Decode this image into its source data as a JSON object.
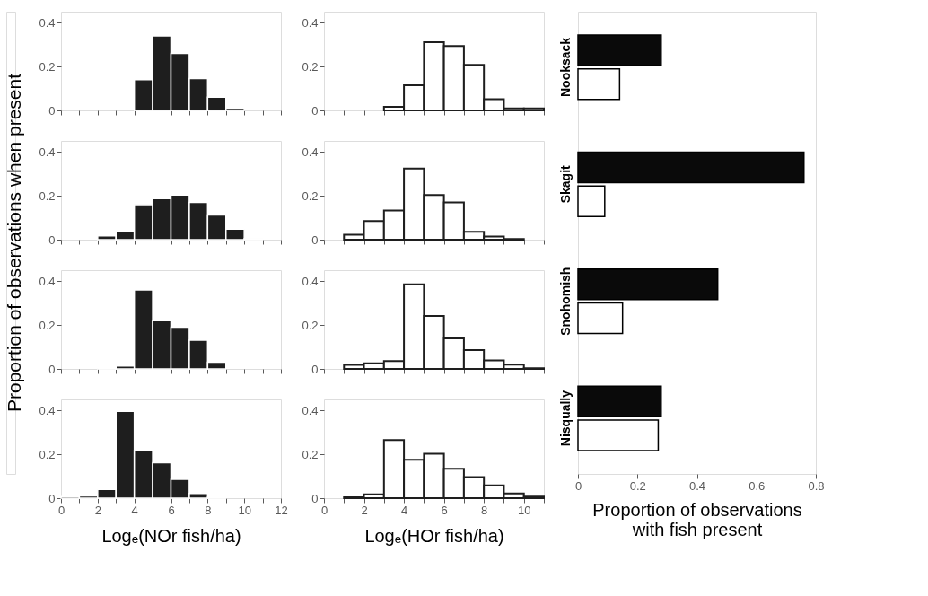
{
  "chart_data": [
    {
      "type": "histogram",
      "ylabel": "Proportion of observations when present",
      "color": "#1e1e1e",
      "bins": [
        0,
        1,
        2,
        3,
        4,
        5,
        6,
        7,
        8,
        9,
        10,
        11,
        12
      ],
      "values": [
        0,
        0,
        0,
        0,
        0.14,
        0.34,
        0.26,
        0.145,
        0.06,
        0.01,
        0,
        0
      ],
      "xlim": [
        0,
        12
      ],
      "xticks": [
        0,
        {
          "value": 1,
          "label": null
        },
        2,
        {
          "value": 3,
          "label": null
        },
        4,
        {
          "value": 5,
          "label": null
        },
        6,
        {
          "value": 7,
          "label": null
        },
        8,
        {
          "value": 9,
          "label": null
        },
        10,
        {
          "value": 11,
          "label": null
        },
        12
      ],
      "ylim": [
        0,
        0.45
      ],
      "yticks": [
        0,
        0.2,
        0.4
      ],
      "tick_labels": "y"
    },
    {
      "type": "histogram",
      "color": "#ffffff",
      "bins": [
        0,
        1,
        2,
        3,
        4,
        5,
        6,
        7,
        8,
        9,
        10,
        11
      ],
      "values": [
        0,
        0,
        0,
        0.016,
        0.115,
        0.311,
        0.294,
        0.208,
        0.051,
        0.009,
        0.009
      ],
      "xlim": [
        0,
        11
      ],
      "xticks": [
        0,
        {
          "value": 1,
          "label": null
        },
        2,
        {
          "value": 3,
          "label": null
        },
        4,
        {
          "value": 5,
          "label": null
        },
        6,
        {
          "value": 7,
          "label": null
        },
        8,
        {
          "value": 9,
          "label": null
        },
        10,
        {
          "value": 11,
          "label": null
        }
      ],
      "ylim": [
        0,
        0.45
      ],
      "yticks": [
        0,
        0.2,
        0.4
      ],
      "tick_labels": "y"
    },
    {
      "type": "histogram",
      "color": "#1e1e1e",
      "bins": [
        0,
        1,
        2,
        3,
        4,
        5,
        6,
        7,
        8,
        9,
        10,
        11,
        12
      ],
      "values": [
        0,
        0,
        0.017,
        0.036,
        0.16,
        0.187,
        0.204,
        0.17,
        0.112,
        0.048,
        0.005,
        0
      ],
      "xlim": [
        0,
        12
      ],
      "xticks": [
        0,
        {
          "value": 1,
          "label": null
        },
        2,
        {
          "value": 3,
          "label": null
        },
        4,
        {
          "value": 5,
          "label": null
        },
        6,
        {
          "value": 7,
          "label": null
        },
        8,
        {
          "value": 9,
          "label": null
        },
        10,
        {
          "value": 11,
          "label": null
        },
        12
      ],
      "ylim": [
        0,
        0.45
      ],
      "yticks": [
        0,
        0.2,
        0.4
      ],
      "tick_labels": "y"
    },
    {
      "type": "histogram",
      "color": "#ffffff",
      "bins": [
        0,
        1,
        2,
        3,
        4,
        5,
        6,
        7,
        8,
        9,
        10,
        11
      ],
      "values": [
        0,
        0.023,
        0.085,
        0.133,
        0.324,
        0.204,
        0.17,
        0.036,
        0.014,
        0.003,
        0
      ],
      "xlim": [
        0,
        11
      ],
      "xticks": [
        0,
        {
          "value": 1,
          "label": null
        },
        2,
        {
          "value": 3,
          "label": null
        },
        4,
        {
          "value": 5,
          "label": null
        },
        6,
        {
          "value": 7,
          "label": null
        },
        8,
        {
          "value": 9,
          "label": null
        },
        10,
        {
          "value": 11,
          "label": null
        }
      ],
      "ylim": [
        0,
        0.45
      ],
      "yticks": [
        0,
        0.2,
        0.4
      ],
      "tick_labels": "y"
    },
    {
      "type": "histogram",
      "color": "#1e1e1e",
      "bins": [
        0,
        1,
        2,
        3,
        4,
        5,
        6,
        7,
        8,
        9,
        10,
        11,
        12
      ],
      "values": [
        0,
        0,
        0.004,
        0.013,
        0.36,
        0.22,
        0.19,
        0.131,
        0.031,
        0,
        0,
        0
      ],
      "xlim": [
        0,
        12
      ],
      "xticks": [
        0,
        {
          "value": 1,
          "label": null
        },
        2,
        {
          "value": 3,
          "label": null
        },
        4,
        {
          "value": 5,
          "label": null
        },
        6,
        {
          "value": 7,
          "label": null
        },
        8,
        {
          "value": 9,
          "label": null
        },
        10,
        {
          "value": 11,
          "label": null
        },
        12
      ],
      "ylim": [
        0,
        0.45
      ],
      "yticks": [
        0,
        0.2,
        0.4
      ],
      "tick_labels": "y"
    },
    {
      "type": "histogram",
      "color": "#ffffff",
      "bins": [
        0,
        1,
        2,
        3,
        4,
        5,
        6,
        7,
        8,
        9,
        10,
        11
      ],
      "values": [
        0,
        0.018,
        0.026,
        0.036,
        0.386,
        0.241,
        0.139,
        0.086,
        0.039,
        0.019,
        0.003
      ],
      "xlim": [
        0,
        11
      ],
      "xticks": [
        0,
        {
          "value": 1,
          "label": null
        },
        2,
        {
          "value": 3,
          "label": null
        },
        4,
        {
          "value": 5,
          "label": null
        },
        6,
        {
          "value": 7,
          "label": null
        },
        8,
        {
          "value": 9,
          "label": null
        },
        10,
        {
          "value": 11,
          "label": null
        }
      ],
      "ylim": [
        0,
        0.45
      ],
      "yticks": [
        0,
        0.2,
        0.4
      ],
      "tick_labels": "y"
    },
    {
      "type": "histogram",
      "xlabel": "Logₑ(NOr fish/ha)",
      "color": "#1e1e1e",
      "bins": [
        0,
        1,
        2,
        3,
        4,
        5,
        6,
        7,
        8,
        9,
        10,
        11,
        12
      ],
      "values": [
        0.007,
        0.01,
        0.04,
        0.396,
        0.218,
        0.162,
        0.086,
        0.021,
        0.004,
        0,
        0,
        0
      ],
      "xlim": [
        0,
        12
      ],
      "xticks": [
        0,
        {
          "value": 1,
          "label": null
        },
        2,
        {
          "value": 3,
          "label": null
        },
        4,
        {
          "value": 5,
          "label": null
        },
        6,
        {
          "value": 7,
          "label": null
        },
        8,
        {
          "value": 9,
          "label": null
        },
        10,
        {
          "value": 11,
          "label": null
        },
        12
      ],
      "ylim": [
        0,
        0.45
      ],
      "yticks": [
        0,
        0.2,
        0.4
      ]
    },
    {
      "type": "histogram",
      "xlabel": "Logₑ(HOr fish/ha)",
      "color": "#ffffff",
      "bins": [
        0,
        1,
        2,
        3,
        4,
        5,
        6,
        7,
        8,
        9,
        10,
        11
      ],
      "values": [
        0,
        0.004,
        0.017,
        0.265,
        0.175,
        0.203,
        0.134,
        0.096,
        0.058,
        0.021,
        0.007
      ],
      "xlim": [
        0,
        11
      ],
      "xticks": [
        0,
        {
          "value": 1,
          "label": null
        },
        2,
        {
          "value": 3,
          "label": null
        },
        4,
        {
          "value": 5,
          "label": null
        },
        6,
        {
          "value": 7,
          "label": null
        },
        8,
        {
          "value": 9,
          "label": null
        },
        10,
        {
          "value": 11,
          "label": null
        }
      ],
      "ylim": [
        0,
        0.45
      ],
      "yticks": [
        0,
        0.2,
        0.4
      ]
    },
    {
      "type": "bar",
      "orientation": "horizontal",
      "xlabel": "Proportion of observations\nwith fish present",
      "categories": [
        "Nooksack",
        "Skagit",
        "Snohomish",
        "Nisqually"
      ],
      "series": [
        {
          "color": "#0a0a0a",
          "values": [
            0.28,
            0.76,
            0.47,
            0.28
          ]
        },
        {
          "color": "#ffffff",
          "values": [
            0.14,
            0.09,
            0.15,
            0.27
          ]
        }
      ],
      "xlim": [
        0,
        0.8
      ],
      "xticks": [
        0,
        0.2,
        0.4,
        0.6,
        0.8
      ]
    }
  ]
}
